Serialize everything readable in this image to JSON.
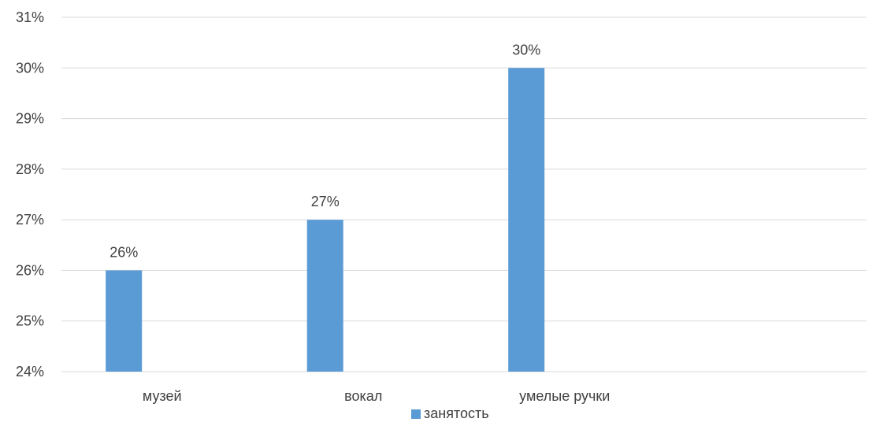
{
  "chart_data": {
    "type": "bar",
    "categories": [
      "музей",
      "вокал",
      "умелые ручки",
      ""
    ],
    "series": [
      {
        "name": "занятость",
        "values": [
          26,
          27,
          30,
          null
        ],
        "labels": [
          "26%",
          "27%",
          "30%",
          ""
        ]
      }
    ],
    "ylim": [
      24,
      31
    ],
    "yticks": [
      24,
      25,
      26,
      27,
      28,
      29,
      30,
      31
    ],
    "ytick_labels": [
      "24%",
      "25%",
      "26%",
      "27%",
      "28%",
      "29%",
      "30%",
      "31%"
    ],
    "grid": true,
    "legend": "bottom",
    "colors": {
      "bar": "#5b9bd5",
      "grid": "#d9d9d9",
      "text": "#404040"
    }
  }
}
